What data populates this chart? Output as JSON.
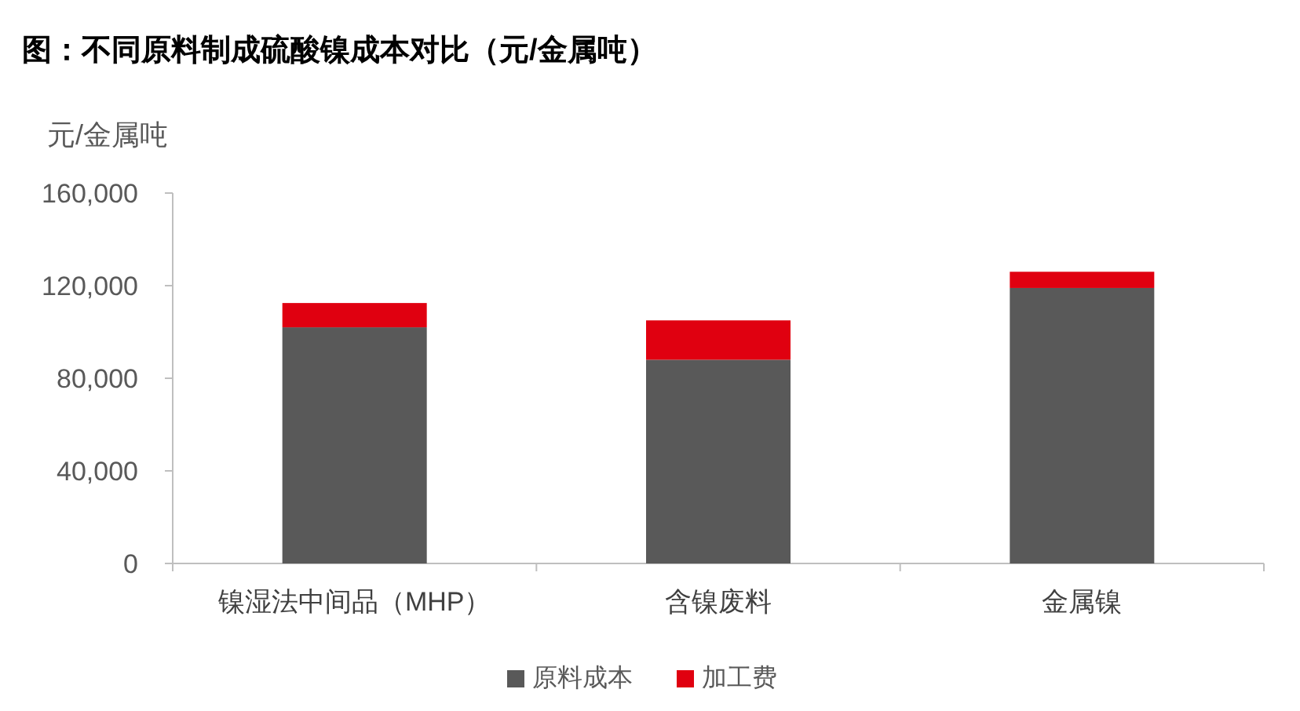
{
  "chart_data": {
    "type": "bar",
    "title": "图：不同原料制成硫酸镍成本对比（元/金属吨）",
    "ylabel": "元/金属吨",
    "stacked": true,
    "categories": [
      "镍湿法中间品（MHP）",
      "含镍废料",
      "金属镍"
    ],
    "series": [
      {
        "name": "原料成本",
        "color": "#595959",
        "values": [
          102000,
          88000,
          119000
        ]
      },
      {
        "name": "加工费",
        "color": "#e00010",
        "values": [
          10500,
          17000,
          7000
        ]
      }
    ],
    "ylim": [
      0,
      160000
    ],
    "yticks": [
      {
        "value": 0,
        "label": "0"
      },
      {
        "value": 40000,
        "label": "40,000"
      },
      {
        "value": 80000,
        "label": "80,000"
      },
      {
        "value": 120000,
        "label": "120,000"
      },
      {
        "value": 160000,
        "label": "160,000"
      }
    ],
    "legend": "bottom"
  }
}
